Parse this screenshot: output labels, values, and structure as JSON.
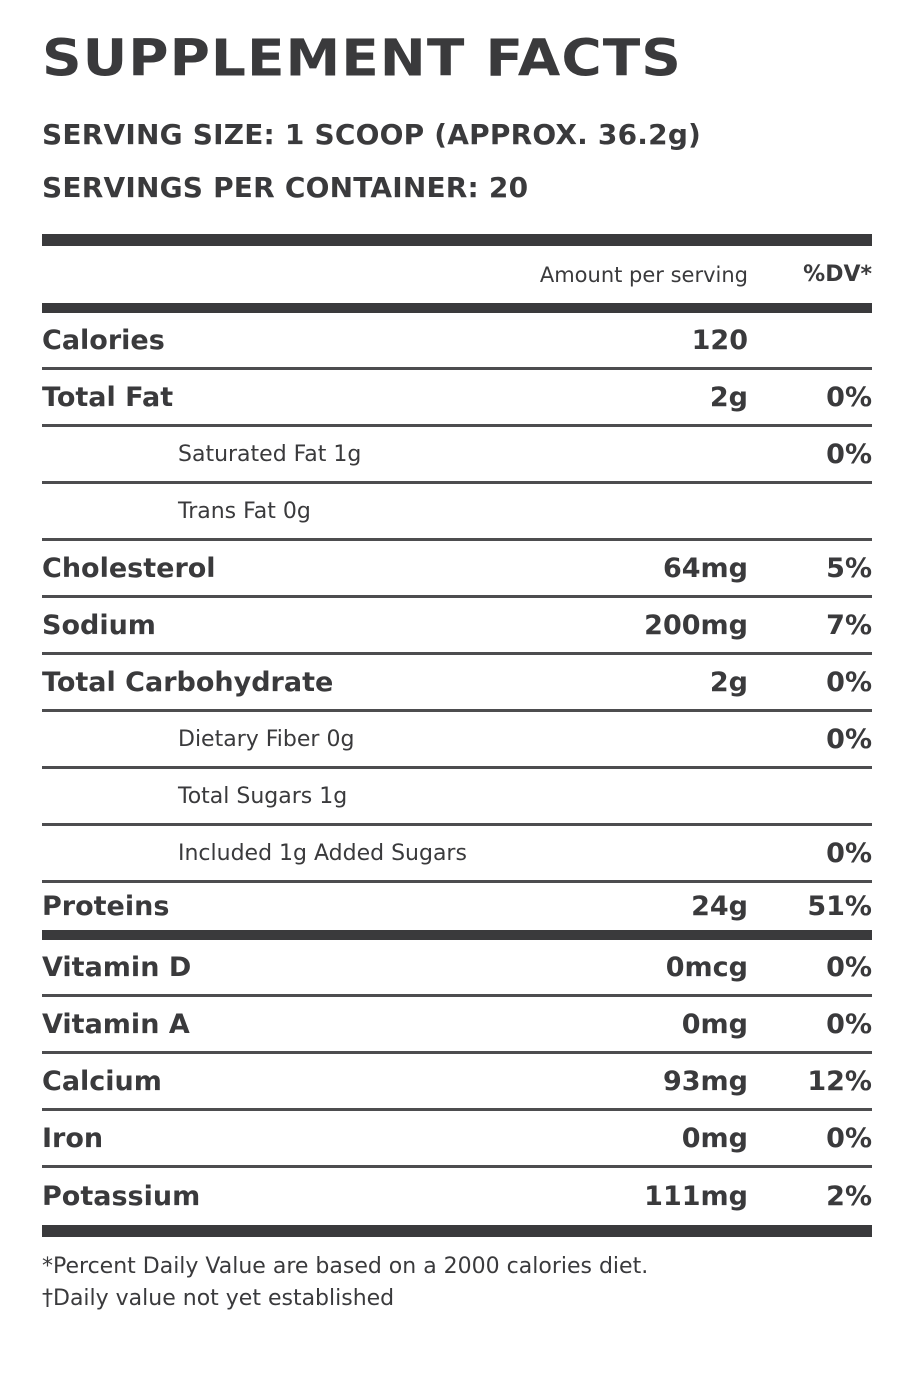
{
  "title": "SUPPLEMENT FACTS",
  "serving": {
    "size_line": "SERVING SIZE: 1 SCOOP (APPROX. 36.2g)",
    "per_container_line": "SERVINGS PER CONTAINER: 20"
  },
  "table": {
    "header": {
      "amount_label": "Amount per serving",
      "dv_label": "%DV*"
    },
    "rows": [
      {
        "label": "Calories",
        "amount": "120",
        "dv": ""
      },
      {
        "label": "Total Fat",
        "amount": "2g",
        "dv": "0%"
      },
      {
        "label": "Saturated Fat 1g",
        "amount": "",
        "dv": "0%"
      },
      {
        "label": "Trans Fat 0g",
        "amount": "",
        "dv": ""
      },
      {
        "label": "Cholesterol",
        "amount": "64mg",
        "dv": "5%"
      },
      {
        "label": "Sodium",
        "amount": "200mg",
        "dv": "7%"
      },
      {
        "label": "Total Carbohydrate",
        "amount": "2g",
        "dv": "0%"
      },
      {
        "label": "Dietary Fiber 0g",
        "amount": "",
        "dv": "0%"
      },
      {
        "label": "Total Sugars 1g",
        "amount": "",
        "dv": ""
      },
      {
        "label": "Included 1g Added Sugars",
        "amount": "",
        "dv": "0%"
      },
      {
        "label": "Proteins",
        "amount": "24g",
        "dv": "51%"
      },
      {
        "label": "Vitamin D",
        "amount": "0mcg",
        "dv": "0%"
      },
      {
        "label": "Vitamin A",
        "amount": "0mg",
        "dv": "0%"
      },
      {
        "label": "Calcium",
        "amount": "93mg",
        "dv": "12%"
      },
      {
        "label": "Iron",
        "amount": "0mg",
        "dv": "0%"
      },
      {
        "label": "Potassium",
        "amount": "111mg",
        "dv": "2%"
      }
    ]
  },
  "footnotes": [
    "*Percent Daily Value are based on a 2000 calories diet.",
    "†Daily value not yet established"
  ],
  "colors": {
    "text": "#3a3a3c",
    "rule_thin": "#4d4d4f",
    "rule_thick": "#3a3a3c",
    "background": "#ffffff"
  }
}
